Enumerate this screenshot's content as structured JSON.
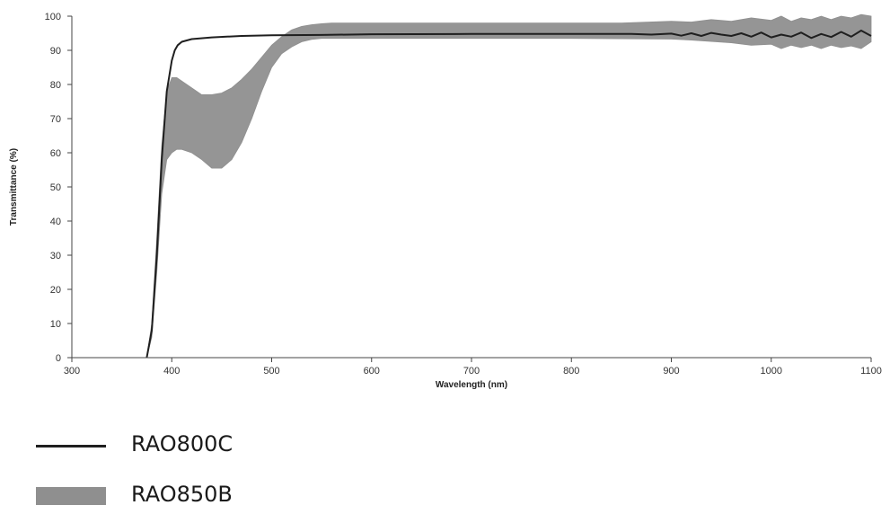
{
  "chart_data": {
    "type": "area",
    "xlabel": "Wavelength (nm)",
    "ylabel": "Transmittance (%)",
    "xlim": [
      300,
      1100
    ],
    "ylim": [
      0,
      100
    ],
    "xticks": [
      300,
      400,
      500,
      600,
      700,
      800,
      900,
      1000,
      1100
    ],
    "yticks": [
      0,
      10,
      20,
      30,
      40,
      50,
      60,
      70,
      80,
      90,
      100
    ],
    "grid": false,
    "legend_position": "bottom-left",
    "series": [
      {
        "name": "RAO800C",
        "style": "line",
        "color": "#1f1f1f",
        "x": [
          375,
          380,
          385,
          390,
          395,
          400,
          403,
          406,
          410,
          420,
          440,
          470,
          500,
          550,
          600,
          700,
          800,
          860,
          880,
          900,
          910,
          920,
          930,
          940,
          950,
          960,
          970,
          980,
          990,
          1000,
          1010,
          1020,
          1030,
          1040,
          1050,
          1060,
          1070,
          1080,
          1090,
          1100
        ],
        "y": [
          0,
          8,
          30,
          58,
          78,
          87,
          90,
          91.5,
          92.5,
          93.3,
          93.8,
          94.2,
          94.4,
          94.5,
          94.7,
          94.8,
          94.8,
          94.8,
          94.6,
          94.9,
          94.3,
          95.0,
          94.2,
          95.1,
          94.6,
          94.2,
          95.0,
          94.0,
          95.2,
          93.8,
          94.6,
          94.0,
          95.2,
          93.6,
          94.8,
          93.9,
          95.4,
          94.0,
          95.8,
          94.2
        ]
      },
      {
        "name": "RAO850B",
        "style": "band",
        "color": "#8f8f8f",
        "x": [
          375,
          380,
          385,
          390,
          395,
          400,
          405,
          410,
          420,
          430,
          440,
          450,
          460,
          470,
          480,
          490,
          500,
          510,
          520,
          530,
          540,
          550,
          560,
          580,
          600,
          650,
          700,
          750,
          800,
          850,
          900,
          920,
          940,
          960,
          980,
          1000,
          1010,
          1020,
          1030,
          1040,
          1050,
          1060,
          1070,
          1080,
          1090,
          1100
        ],
        "upper": [
          0,
          10,
          35,
          62,
          78,
          82,
          82,
          81,
          79,
          77,
          77,
          77.5,
          79,
          81.5,
          84.5,
          88,
          91.5,
          94,
          96,
          97,
          97.5,
          97.8,
          98,
          98,
          98,
          98,
          98,
          98,
          98,
          98,
          98.5,
          98.3,
          99,
          98.5,
          99.5,
          98.8,
          100,
          98.5,
          99.5,
          99,
          100,
          99,
          100,
          99.5,
          100.5,
          100
        ],
        "lower": [
          0,
          6,
          25,
          48,
          58,
          60,
          61,
          61,
          60,
          58,
          55.5,
          55.5,
          58,
          63,
          70,
          78,
          85,
          89,
          91,
          92.5,
          93.2,
          93.5,
          93.5,
          93.5,
          93.5,
          93.5,
          93.5,
          93.5,
          93.5,
          93.4,
          93.3,
          93,
          92.6,
          92.2,
          91.5,
          91.8,
          90.5,
          91.5,
          90.8,
          91.5,
          90.5,
          91.5,
          90.8,
          91.3,
          90.5,
          92.5
        ]
      }
    ]
  },
  "legend": [
    {
      "label": "RAO800C",
      "style": "line",
      "color": "#1f1f1f"
    },
    {
      "label": "RAO850B",
      "style": "band",
      "color": "#8f8f8f"
    }
  ]
}
